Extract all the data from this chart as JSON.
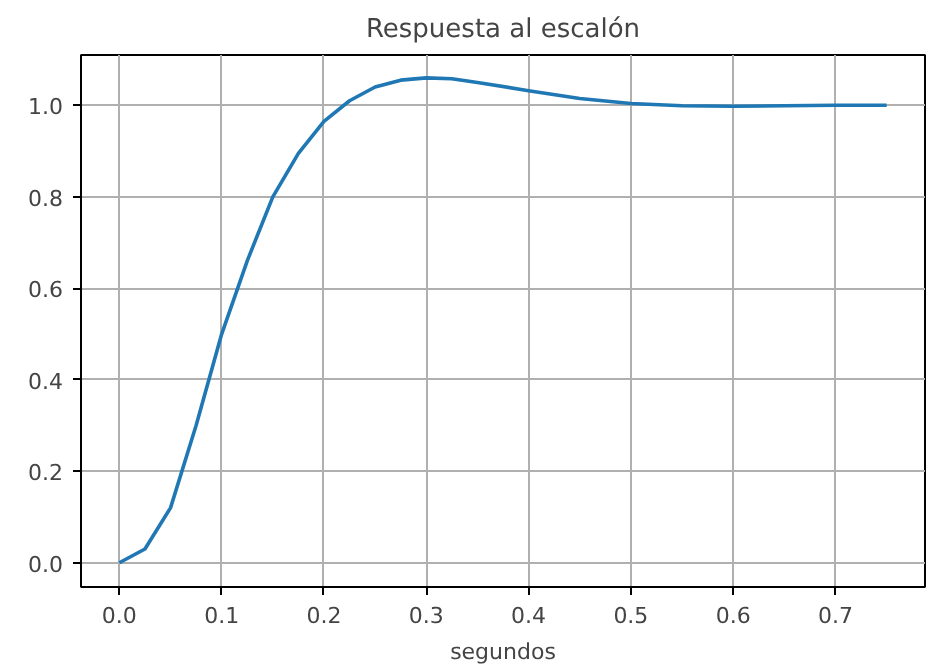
{
  "chart_data": {
    "type": "line",
    "title": "Respuesta al escalón",
    "xlabel": "segundos",
    "x": [
      0,
      0.025,
      0.05,
      0.075,
      0.1,
      0.125,
      0.15,
      0.175,
      0.2,
      0.225,
      0.25,
      0.275,
      0.3,
      0.325,
      0.35,
      0.4,
      0.45,
      0.5,
      0.55,
      0.6,
      0.65,
      0.7,
      0.75
    ],
    "series": [
      {
        "color": "#1f77b4",
        "values": [
          0,
          0.03,
          0.12,
          0.3,
          0.5,
          0.66,
          0.8,
          0.895,
          0.965,
          1.01,
          1.04,
          1.055,
          1.06,
          1.058,
          1.05,
          1.032,
          1.015,
          1.004,
          0.999,
          0.998,
          0.999,
          1.0,
          1.0
        ]
      }
    ],
    "xlim": [
      -0.0375,
      0.7875
    ],
    "ylim": [
      -0.053,
      1.11
    ],
    "xticks": [
      {
        "value": 0,
        "label": "0.0"
      },
      0.1,
      0.2,
      0.3,
      0.4,
      0.5,
      0.6,
      0.7
    ],
    "yticks": [
      {
        "value": 0,
        "label": "0.0"
      },
      0.2,
      0.4,
      0.6,
      0.8,
      {
        "value": 1,
        "label": "1.0"
      }
    ],
    "grid": true,
    "marker": "none",
    "line_style": "solid"
  }
}
